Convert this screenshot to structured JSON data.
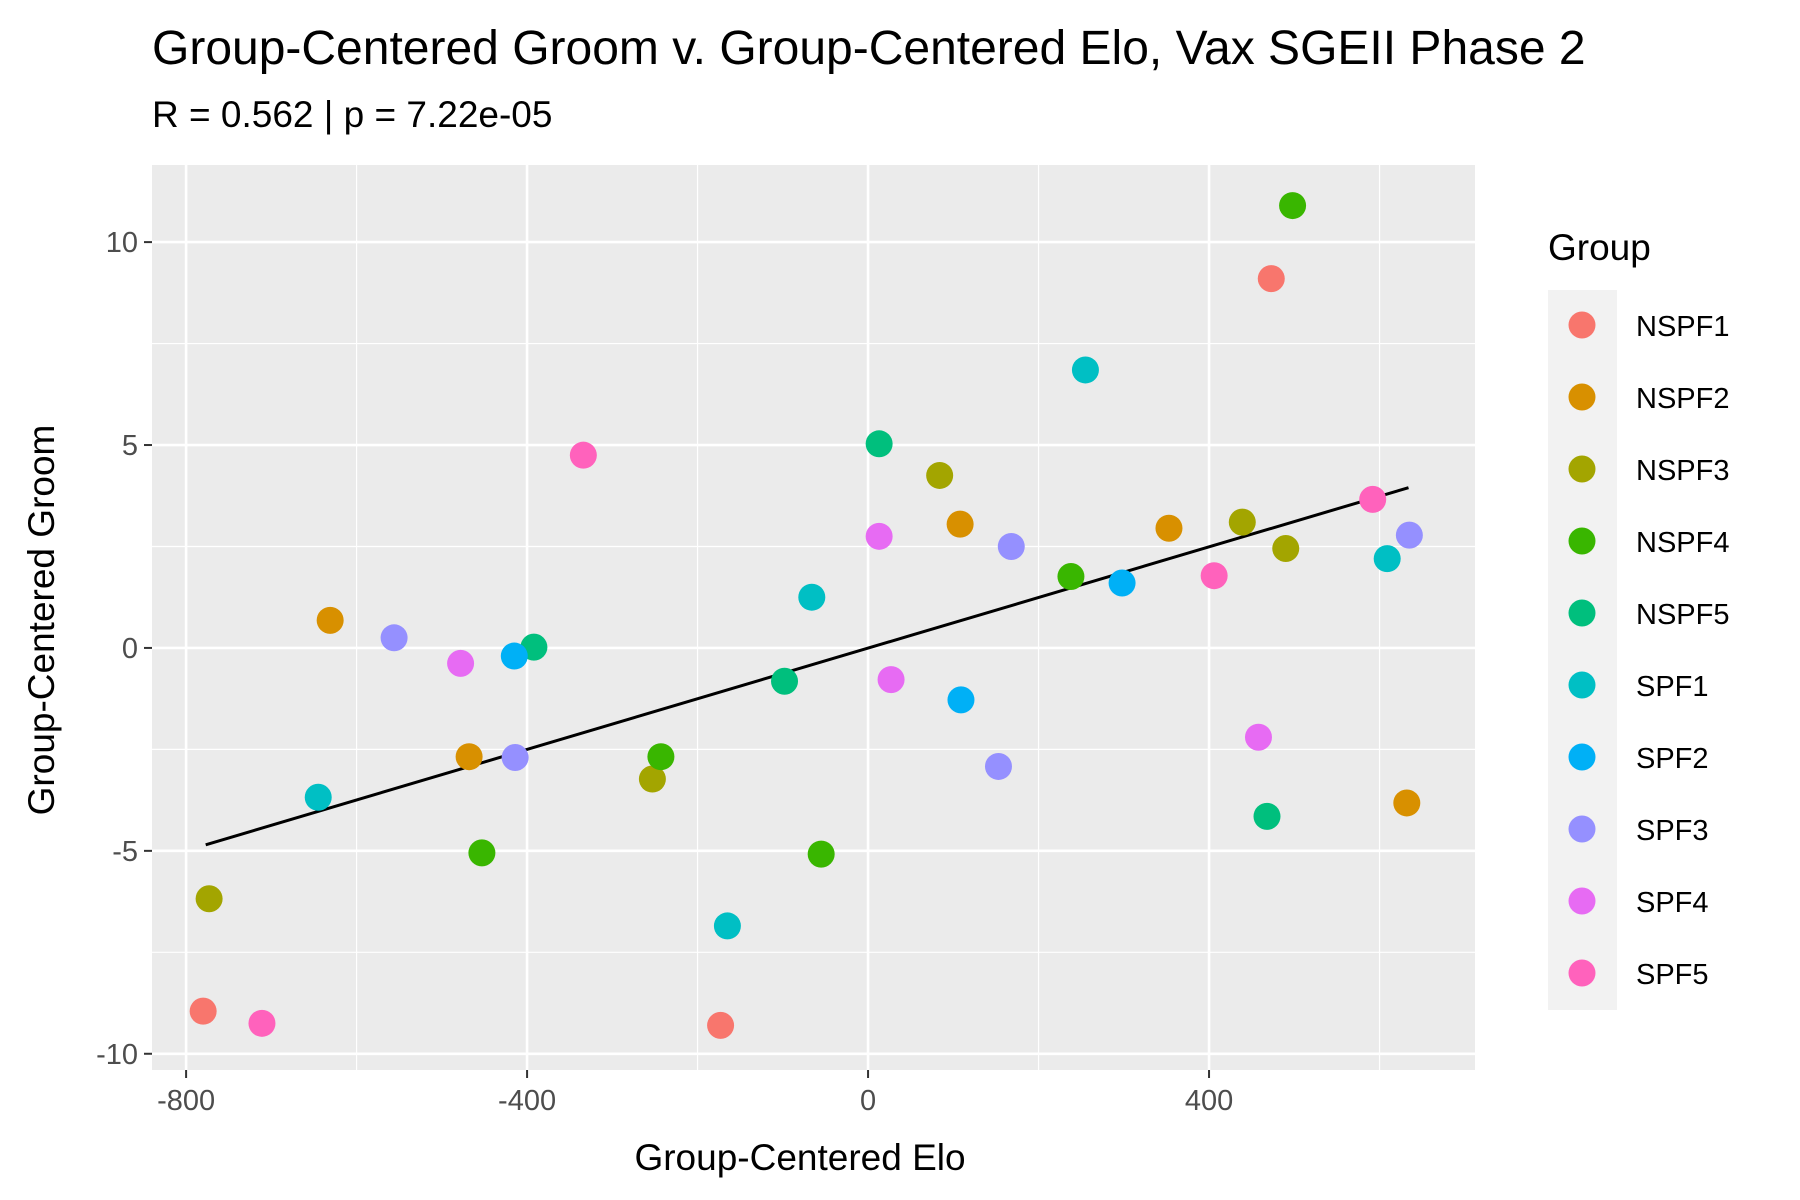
{
  "chart_data": {
    "type": "scatter",
    "title": "Group-Centered Groom v. Group-Centered Elo, Vax SGEII Phase 2",
    "subtitle": "R = 0.562 | p = 7.22e-05",
    "xlabel": "Group-Centered Elo",
    "ylabel": "Group-Centered Groom",
    "xlim": [
      -840,
      712
    ],
    "ylim": [
      -10.4,
      11.9
    ],
    "x_ticks": [
      -800,
      -400,
      0,
      400
    ],
    "x_tick_labels": [
      "-800",
      "-400",
      "0",
      "400"
    ],
    "y_ticks": [
      -10,
      -5,
      0,
      5,
      10
    ],
    "y_tick_labels": [
      "-10",
      "-5",
      "0",
      "5",
      "10"
    ],
    "grid": true,
    "legend_title": "Group",
    "legend_position": "right",
    "trend_line": {
      "x": [
        -777,
        634
      ],
      "y": [
        -4.85,
        3.95
      ]
    },
    "series": [
      {
        "name": "NSPF1",
        "color": "#F8766D",
        "points": [
          [
            -780,
            -8.95
          ],
          [
            473,
            9.1
          ],
          [
            -173,
            -9.3
          ]
        ]
      },
      {
        "name": "NSPF2",
        "color": "#D89000",
        "points": [
          [
            -631,
            0.68
          ],
          [
            -468,
            -2.68
          ],
          [
            108,
            3.05
          ],
          [
            353,
            2.95
          ],
          [
            632,
            -3.82
          ]
        ]
      },
      {
        "name": "NSPF3",
        "color": "#A3A500",
        "points": [
          [
            -773,
            -6.18
          ],
          [
            -253,
            -3.23
          ],
          [
            84,
            4.25
          ],
          [
            439,
            3.1
          ],
          [
            490,
            2.45
          ]
        ]
      },
      {
        "name": "NSPF4",
        "color": "#39B600",
        "points": [
          [
            -453,
            -5.05
          ],
          [
            -243,
            -2.68
          ],
          [
            -55,
            -5.08
          ],
          [
            238,
            1.76
          ],
          [
            498,
            10.9
          ]
        ]
      },
      {
        "name": "NSPF5",
        "color": "#00BF7D",
        "points": [
          [
            -392,
            0.02
          ],
          [
            -98,
            -0.82
          ],
          [
            13,
            5.03
          ],
          [
            468,
            -4.15
          ]
        ]
      },
      {
        "name": "SPF1",
        "color": "#00BFC4",
        "points": [
          [
            -645,
            -3.68
          ],
          [
            -165,
            -6.85
          ],
          [
            -66,
            1.25
          ],
          [
            255,
            6.85
          ],
          [
            609,
            2.2
          ]
        ]
      },
      {
        "name": "SPF2",
        "color": "#00B0F6",
        "points": [
          [
            -415,
            -0.2
          ],
          [
            109,
            -1.28
          ],
          [
            298,
            1.6
          ]
        ]
      },
      {
        "name": "SPF3",
        "color": "#9590FF",
        "points": [
          [
            -556,
            0.25
          ],
          [
            -414,
            -2.7
          ],
          [
            153,
            -2.92
          ],
          [
            168,
            2.5
          ],
          [
            635,
            2.78
          ]
        ]
      },
      {
        "name": "SPF4",
        "color": "#E76BF3",
        "points": [
          [
            -478,
            -0.38
          ],
          [
            13,
            2.75
          ],
          [
            27,
            -0.78
          ],
          [
            458,
            -2.2
          ]
        ]
      },
      {
        "name": "SPF5",
        "color": "#FF62BC",
        "points": [
          [
            -711,
            -9.25
          ],
          [
            -334,
            4.75
          ],
          [
            406,
            1.78
          ],
          [
            592,
            3.66
          ]
        ]
      }
    ]
  }
}
